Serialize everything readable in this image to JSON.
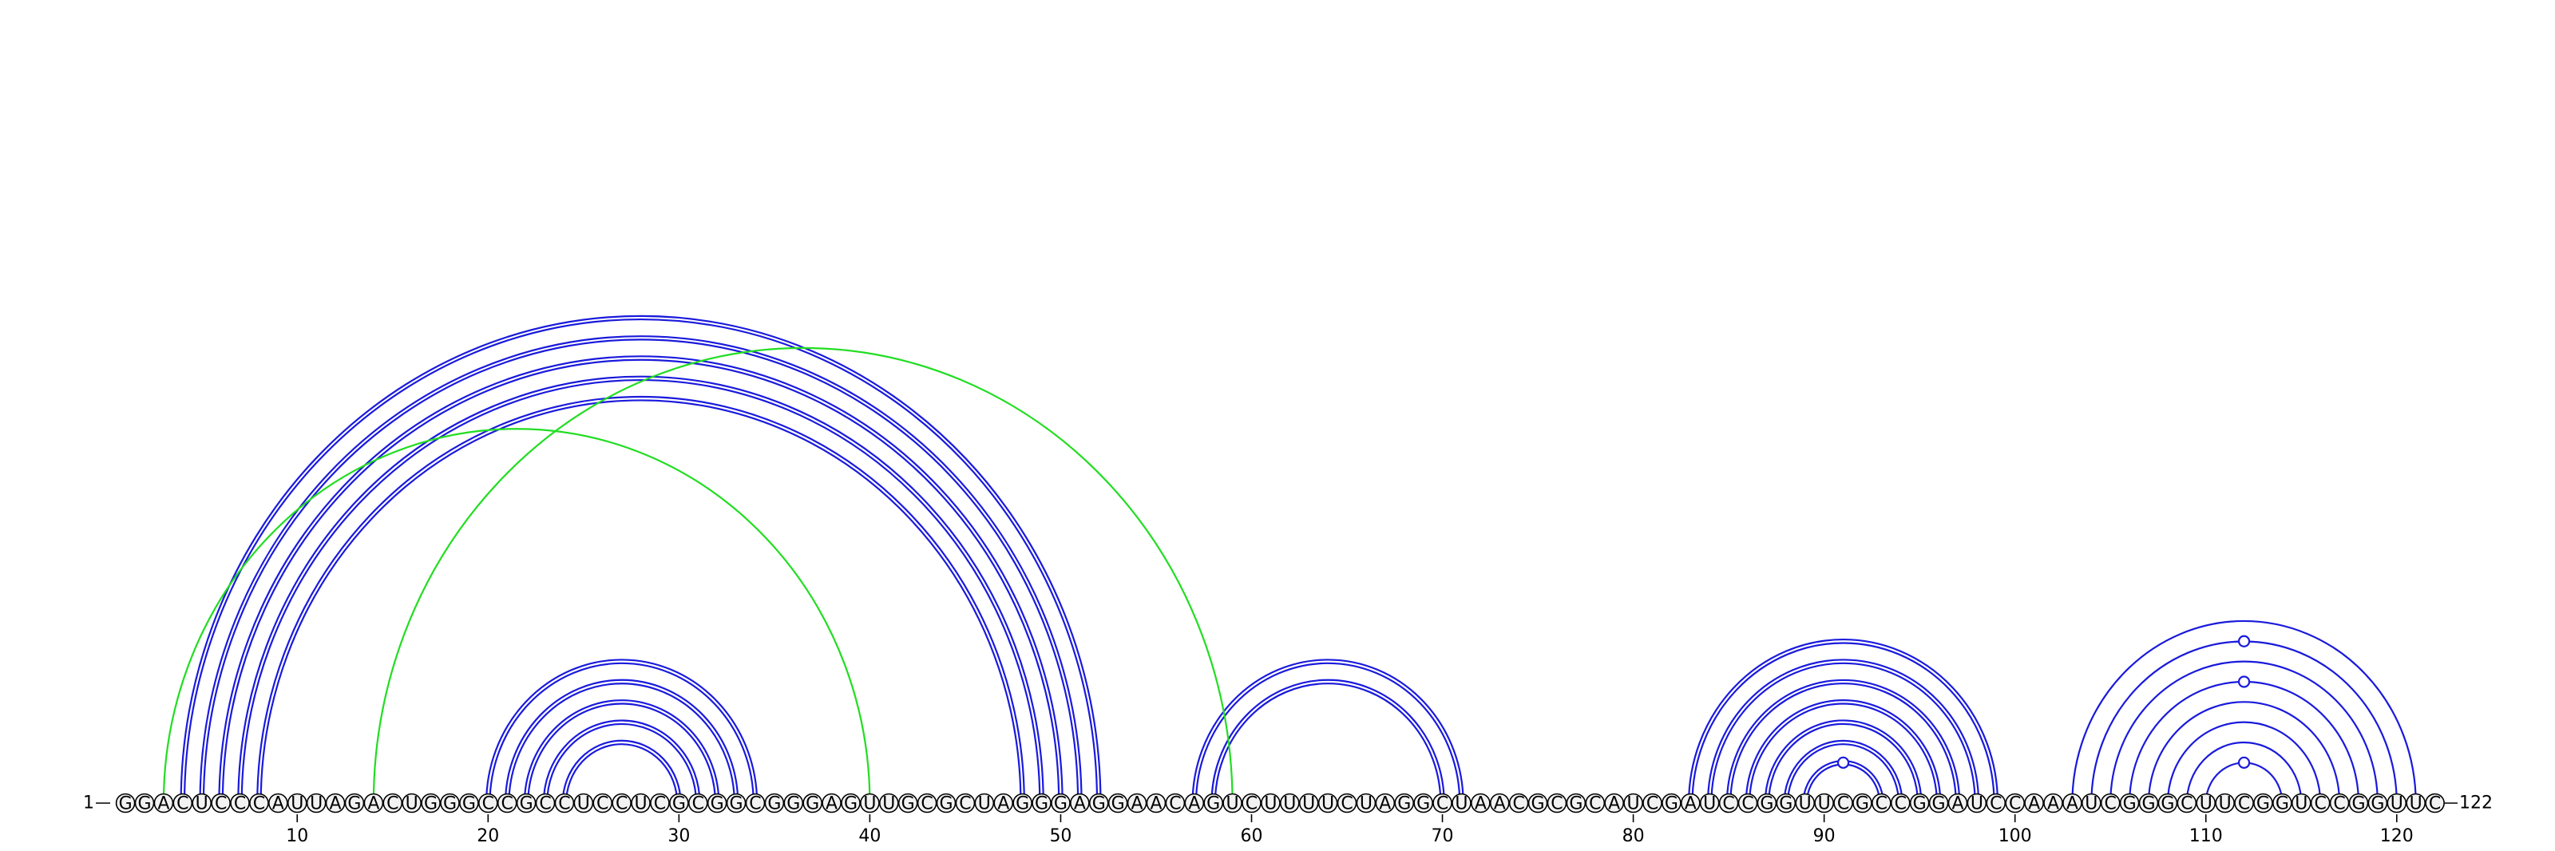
{
  "sequence": "GGACUCCCAUUAGACUGGGCCGCCUCCUCGCGGCGGGAGUUGCGCUAGGGAGGAACAGUCUUUUCUAGGCUAACGCGCAUCGAUCCGGUUCGCCGGAUCCAAAUCGGGCUUCGGUCCGGUUC",
  "start_label": "1",
  "end_label": "122",
  "tick_labels": [
    "10",
    "20",
    "30",
    "40",
    "50",
    "60",
    "70",
    "80",
    "90",
    "100",
    "110",
    "120"
  ],
  "colors": {
    "helix": "#1a1adc",
    "pseudoknot": "#22dd22",
    "circle_fill": "#f2f2f2",
    "text": "#000000"
  },
  "chart_data": {
    "type": "arc",
    "helices": [
      {
        "i": 4,
        "j": 52,
        "length": 5,
        "double_line": true
      },
      {
        "i": 20,
        "j": 34,
        "length": 5,
        "double_line": true
      },
      {
        "i": 57,
        "j": 71,
        "length": 2,
        "double_line": true
      },
      {
        "i": 83,
        "j": 99,
        "length": 7,
        "double_line": true
      },
      {
        "i": 103,
        "j": 121,
        "length": 8,
        "double_line": false
      }
    ],
    "pseudoknot_pairs": [
      [
        3,
        40
      ],
      [
        14,
        59
      ]
    ],
    "markers": [
      91,
      112
    ]
  }
}
